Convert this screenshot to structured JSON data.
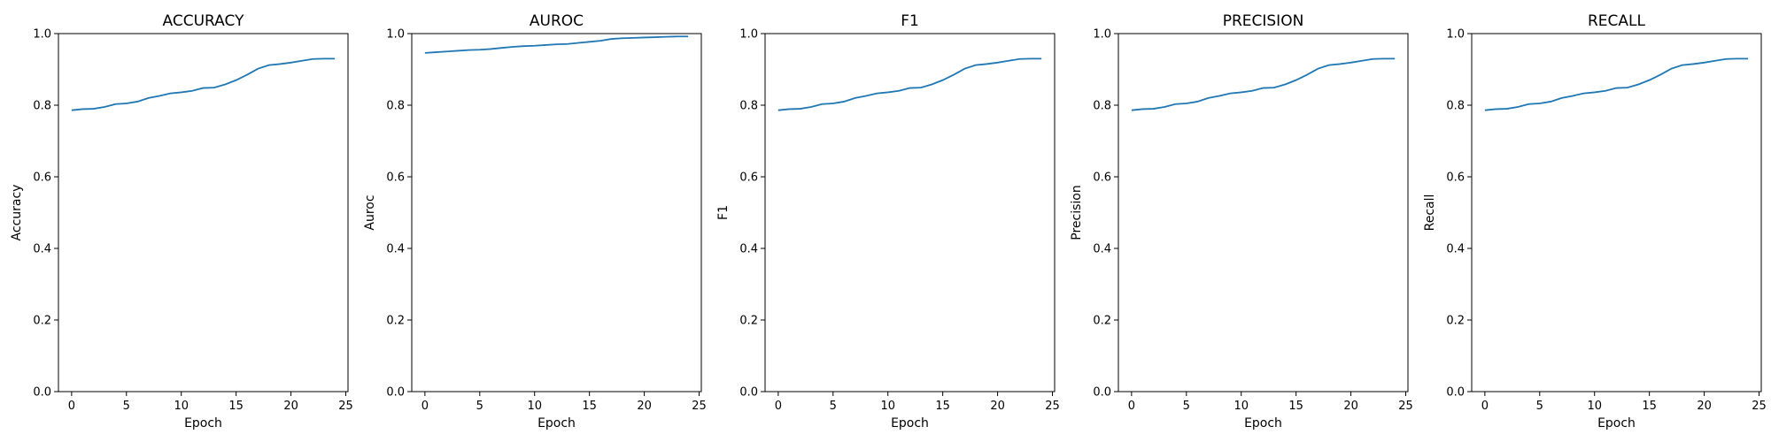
{
  "line_color": "#1f77b4",
  "chart_data": [
    {
      "type": "line",
      "title": "ACCURACY",
      "xlabel": "Epoch",
      "ylabel": "Accuracy",
      "xlim": [
        -1.2,
        25.2
      ],
      "ylim": [
        0.0,
        1.0
      ],
      "xticks": [
        0,
        5,
        10,
        15,
        20,
        25
      ],
      "yticks": [
        0.0,
        0.2,
        0.4,
        0.6,
        0.8,
        1.0
      ],
      "grid": false,
      "x": [
        0,
        1,
        2,
        3,
        4,
        5,
        6,
        7,
        8,
        9,
        10,
        11,
        12,
        13,
        14,
        15,
        16,
        17,
        18,
        19,
        20,
        21,
        22,
        23,
        24
      ],
      "y": [
        0.786,
        0.789,
        0.79,
        0.795,
        0.803,
        0.805,
        0.81,
        0.82,
        0.826,
        0.833,
        0.836,
        0.84,
        0.848,
        0.849,
        0.858,
        0.87,
        0.885,
        0.902,
        0.912,
        0.915,
        0.919,
        0.924,
        0.929,
        0.93,
        0.93
      ]
    },
    {
      "type": "line",
      "title": "AUROC",
      "xlabel": "Epoch",
      "ylabel": "Auroc",
      "xlim": [
        -1.2,
        25.2
      ],
      "ylim": [
        0.0,
        1.0
      ],
      "xticks": [
        0,
        5,
        10,
        15,
        20,
        25
      ],
      "yticks": [
        0.0,
        0.2,
        0.4,
        0.6,
        0.8,
        1.0
      ],
      "grid": false,
      "x": [
        0,
        1,
        2,
        3,
        4,
        5,
        6,
        7,
        8,
        9,
        10,
        11,
        12,
        13,
        14,
        15,
        16,
        17,
        18,
        19,
        20,
        21,
        22,
        23,
        24
      ],
      "y": [
        0.946,
        0.948,
        0.95,
        0.952,
        0.954,
        0.955,
        0.957,
        0.96,
        0.963,
        0.965,
        0.966,
        0.968,
        0.97,
        0.971,
        0.974,
        0.977,
        0.98,
        0.985,
        0.987,
        0.988,
        0.989,
        0.99,
        0.991,
        0.992,
        0.992
      ]
    },
    {
      "type": "line",
      "title": "F1",
      "xlabel": "Epoch",
      "ylabel": "F1",
      "xlim": [
        -1.2,
        25.2
      ],
      "ylim": [
        0.0,
        1.0
      ],
      "xticks": [
        0,
        5,
        10,
        15,
        20,
        25
      ],
      "yticks": [
        0.0,
        0.2,
        0.4,
        0.6,
        0.8,
        1.0
      ],
      "grid": false,
      "x": [
        0,
        1,
        2,
        3,
        4,
        5,
        6,
        7,
        8,
        9,
        10,
        11,
        12,
        13,
        14,
        15,
        16,
        17,
        18,
        19,
        20,
        21,
        22,
        23,
        24
      ],
      "y": [
        0.786,
        0.789,
        0.79,
        0.795,
        0.803,
        0.805,
        0.81,
        0.82,
        0.826,
        0.833,
        0.836,
        0.84,
        0.848,
        0.849,
        0.858,
        0.87,
        0.885,
        0.902,
        0.912,
        0.915,
        0.919,
        0.924,
        0.929,
        0.93,
        0.93
      ]
    },
    {
      "type": "line",
      "title": "PRECISION",
      "xlabel": "Epoch",
      "ylabel": "Precision",
      "xlim": [
        -1.2,
        25.2
      ],
      "ylim": [
        0.0,
        1.0
      ],
      "xticks": [
        0,
        5,
        10,
        15,
        20,
        25
      ],
      "yticks": [
        0.0,
        0.2,
        0.4,
        0.6,
        0.8,
        1.0
      ],
      "grid": false,
      "x": [
        0,
        1,
        2,
        3,
        4,
        5,
        6,
        7,
        8,
        9,
        10,
        11,
        12,
        13,
        14,
        15,
        16,
        17,
        18,
        19,
        20,
        21,
        22,
        23,
        24
      ],
      "y": [
        0.786,
        0.789,
        0.79,
        0.795,
        0.803,
        0.805,
        0.81,
        0.82,
        0.826,
        0.833,
        0.836,
        0.84,
        0.848,
        0.849,
        0.858,
        0.87,
        0.885,
        0.902,
        0.912,
        0.915,
        0.919,
        0.924,
        0.929,
        0.93,
        0.93
      ]
    },
    {
      "type": "line",
      "title": "RECALL",
      "xlabel": "Epoch",
      "ylabel": "Recall",
      "xlim": [
        -1.2,
        25.2
      ],
      "ylim": [
        0.0,
        1.0
      ],
      "xticks": [
        0,
        5,
        10,
        15,
        20,
        25
      ],
      "yticks": [
        0.0,
        0.2,
        0.4,
        0.6,
        0.8,
        1.0
      ],
      "grid": false,
      "x": [
        0,
        1,
        2,
        3,
        4,
        5,
        6,
        7,
        8,
        9,
        10,
        11,
        12,
        13,
        14,
        15,
        16,
        17,
        18,
        19,
        20,
        21,
        22,
        23,
        24
      ],
      "y": [
        0.786,
        0.789,
        0.79,
        0.795,
        0.803,
        0.805,
        0.81,
        0.82,
        0.826,
        0.833,
        0.836,
        0.84,
        0.848,
        0.849,
        0.858,
        0.87,
        0.885,
        0.902,
        0.912,
        0.915,
        0.919,
        0.924,
        0.929,
        0.93,
        0.93
      ]
    }
  ]
}
